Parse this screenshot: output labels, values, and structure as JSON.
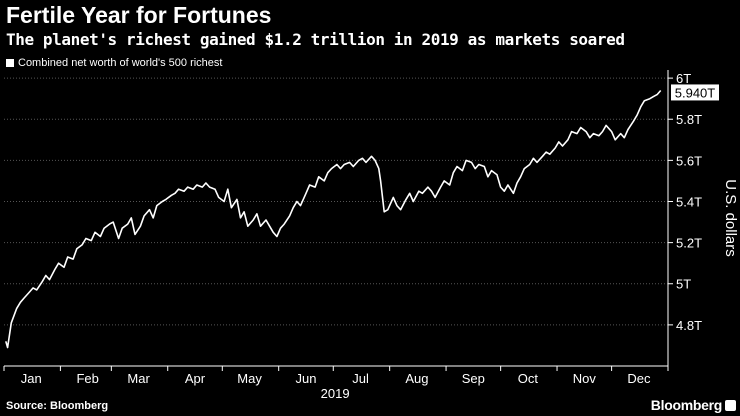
{
  "header": {
    "title": "Fertile Year for Fortunes",
    "subtitle": "The planet's richest gained $1.2 trillion in 2019 as markets soared"
  },
  "legend": {
    "label": "Combined net worth of world's 500 richest"
  },
  "footer": {
    "source": "Source: Bloomberg",
    "brand": "Bloomberg"
  },
  "colors": {
    "background": "#000000",
    "line": "#ffffff",
    "grid": "#555555"
  },
  "chart_data": {
    "type": "line",
    "title": "Fertile Year for Fortunes",
    "subtitle": "The planet's richest gained $1.2 trillion in 2019 as markets soared",
    "xlabel": "2019",
    "ylabel": "U.S. dollars",
    "ylim": [
      4.6,
      6.02
    ],
    "y_ticks": [
      4.8,
      5.0,
      5.2,
      5.4,
      5.6,
      5.8,
      6.0
    ],
    "y_tick_labels": [
      "4.8T",
      "5T",
      "5.2T",
      "5.4T",
      "5.6T",
      "5.8T",
      "6T"
    ],
    "x_range": [
      0,
      365
    ],
    "x_ticks": [
      15,
      46,
      74,
      105,
      135,
      166,
      196,
      227,
      258,
      288,
      319,
      349
    ],
    "x_tick_labels": [
      "Jan",
      "Feb",
      "Mar",
      "Apr",
      "May",
      "Jun",
      "Jul",
      "Aug",
      "Sep",
      "Oct",
      "Nov",
      "Dec"
    ],
    "grid": true,
    "legend_position": "top-left",
    "last_value_label": "5.940T",
    "series": [
      {
        "name": "Combined net worth of world's 500 richest",
        "x": [
          1,
          2,
          4,
          7,
          9,
          11,
          14,
          16,
          18,
          21,
          23,
          25,
          28,
          30,
          33,
          35,
          38,
          40,
          43,
          45,
          48,
          50,
          53,
          55,
          58,
          60,
          63,
          65,
          68,
          70,
          72,
          75,
          77,
          80,
          82,
          84,
          87,
          89,
          92,
          94,
          96,
          99,
          101,
          104,
          106,
          109,
          111,
          113,
          116,
          118,
          121,
          123,
          125,
          128,
          130,
          132,
          134,
          137,
          139,
          141,
          144,
          146,
          148,
          150,
          152,
          154,
          157,
          159,
          161,
          163,
          166,
          168,
          171,
          173,
          176,
          178,
          180,
          183,
          185,
          187,
          190,
          192,
          195,
          197,
          199,
          202,
          204,
          206,
          207,
          209,
          211,
          214,
          216,
          218,
          221,
          223,
          225,
          228,
          230,
          233,
          235,
          237,
          240,
          242,
          245,
          247,
          249,
          252,
          254,
          257,
          259,
          261,
          264,
          266,
          268,
          271,
          273,
          275,
          277,
          280,
          282,
          284,
          286,
          289,
          291,
          293,
          296,
          298,
          300,
          303,
          305,
          307,
          310,
          312,
          315,
          317,
          320,
          322,
          324,
          327,
          329,
          331,
          334,
          336,
          339,
          341,
          343,
          346,
          348,
          350,
          352,
          355,
          357,
          359,
          361
        ],
        "values": [
          4.72,
          4.69,
          4.81,
          4.88,
          4.91,
          4.93,
          4.96,
          4.98,
          4.97,
          5.01,
          5.04,
          5.02,
          5.07,
          5.1,
          5.08,
          5.13,
          5.12,
          5.17,
          5.19,
          5.22,
          5.21,
          5.25,
          5.23,
          5.27,
          5.29,
          5.3,
          5.22,
          5.27,
          5.29,
          5.32,
          5.24,
          5.28,
          5.33,
          5.36,
          5.32,
          5.38,
          5.4,
          5.41,
          5.43,
          5.44,
          5.46,
          5.45,
          5.47,
          5.46,
          5.48,
          5.47,
          5.49,
          5.47,
          5.46,
          5.42,
          5.4,
          5.46,
          5.37,
          5.41,
          5.32,
          5.35,
          5.28,
          5.31,
          5.34,
          5.28,
          5.31,
          5.28,
          5.25,
          5.23,
          5.27,
          5.29,
          5.33,
          5.37,
          5.4,
          5.38,
          5.44,
          5.48,
          5.47,
          5.52,
          5.5,
          5.54,
          5.56,
          5.58,
          5.56,
          5.58,
          5.59,
          5.57,
          5.6,
          5.61,
          5.59,
          5.62,
          5.6,
          5.56,
          5.5,
          5.35,
          5.36,
          5.42,
          5.38,
          5.36,
          5.41,
          5.44,
          5.4,
          5.45,
          5.44,
          5.47,
          5.45,
          5.42,
          5.47,
          5.5,
          5.48,
          5.54,
          5.57,
          5.55,
          5.6,
          5.59,
          5.56,
          5.58,
          5.57,
          5.52,
          5.55,
          5.53,
          5.47,
          5.45,
          5.48,
          5.44,
          5.49,
          5.52,
          5.56,
          5.58,
          5.61,
          5.59,
          5.62,
          5.64,
          5.63,
          5.66,
          5.69,
          5.67,
          5.7,
          5.74,
          5.73,
          5.76,
          5.74,
          5.71,
          5.73,
          5.72,
          5.74,
          5.77,
          5.74,
          5.7,
          5.73,
          5.71,
          5.75,
          5.79,
          5.82,
          5.86,
          5.89,
          5.9,
          5.91,
          5.92,
          5.94
        ]
      }
    ]
  }
}
